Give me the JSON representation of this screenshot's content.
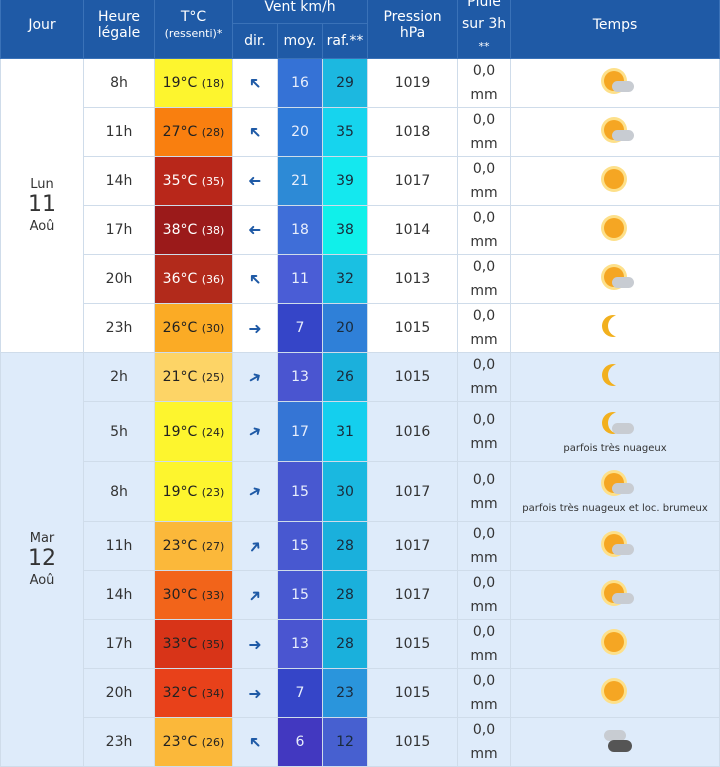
{
  "header": {
    "jour": "Jour",
    "heure": "Heure",
    "heure2": "légale",
    "temp": "T°C",
    "temp2": "(ressenti)*",
    "vent": "Vent km/h",
    "dir": "dir.",
    "moy": "moy.",
    "raf": "raf.**",
    "pression": "Pression",
    "pression2": "hPa",
    "pluie": "Pluie",
    "pluie2": "sur 3h",
    "pluie3": "**",
    "temps": "Temps"
  },
  "days": [
    {
      "name": "Lun",
      "num": "11",
      "month": "Aoû",
      "rows": [
        {
          "h": "8h",
          "t": "19°C",
          "r": "(18)",
          "tc": "#fdf52e",
          "dir": 225,
          "moy": "16",
          "mc": "#3572d6",
          "raf": "29",
          "rc": "#1cb8e0",
          "p": "1019",
          "rain": "0,0",
          "unit": "mm",
          "icon": "sun-cloud"
        },
        {
          "h": "11h",
          "t": "27°C",
          "r": "(28)",
          "tc": "#f97f0f",
          "dir": 225,
          "moy": "20",
          "mc": "#2f7ad8",
          "raf": "35",
          "rc": "#16d4ee",
          "p": "1018",
          "rain": "0,0",
          "unit": "mm",
          "icon": "sun-cloud"
        },
        {
          "h": "14h",
          "t": "35°C",
          "r": "(35)",
          "tc": "#b8271a",
          "dark": true,
          "dir": 180,
          "moy": "21",
          "mc": "#2d8ad6",
          "raf": "39",
          "rc": "#14e8ef",
          "p": "1017",
          "rain": "0,0",
          "unit": "mm",
          "icon": "sun"
        },
        {
          "h": "17h",
          "t": "38°C",
          "r": "(38)",
          "tc": "#9b1a1a",
          "dark": true,
          "dir": 180,
          "moy": "18",
          "mc": "#3f6ed8",
          "raf": "38",
          "rc": "#10f0ea",
          "p": "1014",
          "rain": "0,0",
          "unit": "mm",
          "icon": "sun"
        },
        {
          "h": "20h",
          "t": "36°C",
          "r": "(36)",
          "tc": "#b22a1b",
          "dark": true,
          "dir": 225,
          "moy": "11",
          "mc": "#4a5dd6",
          "raf": "32",
          "rc": "#1ac0e2",
          "p": "1013",
          "rain": "0,0",
          "unit": "mm",
          "icon": "sun-cloud"
        },
        {
          "h": "23h",
          "t": "26°C",
          "r": "(30)",
          "tc": "#fbab25",
          "dir": 0,
          "moy": "7",
          "mc": "#3545c8",
          "raf": "20",
          "rc": "#2f80d8",
          "p": "1015",
          "rain": "0,0",
          "unit": "mm",
          "icon": "moon"
        }
      ]
    },
    {
      "name": "Mar",
      "num": "12",
      "month": "Aoû",
      "rows": [
        {
          "h": "2h",
          "t": "21°C",
          "r": "(25)",
          "tc": "#fdd466",
          "dir": -30,
          "moy": "13",
          "mc": "#4a55d0",
          "raf": "26",
          "rc": "#1bb0dc",
          "p": "1015",
          "rain": "0,0",
          "unit": "mm",
          "icon": "moon"
        },
        {
          "h": "5h",
          "t": "19°C",
          "r": "(24)",
          "tc": "#fdf52e",
          "dir": -30,
          "moy": "17",
          "mc": "#3575d5",
          "raf": "31",
          "rc": "#14cfee",
          "p": "1016",
          "rain": "0,0",
          "unit": "mm",
          "icon": "moon-cloud",
          "caption": "parfois très nuageux"
        },
        {
          "h": "8h",
          "t": "19°C",
          "r": "(23)",
          "tc": "#fdf52e",
          "dir": -30,
          "moy": "15",
          "mc": "#4858d0",
          "raf": "30",
          "rc": "#1ab8e0",
          "p": "1017",
          "rain": "0,0",
          "unit": "mm",
          "icon": "sun-cloud",
          "caption": "parfois très nuageux et loc. brumeux"
        },
        {
          "h": "11h",
          "t": "23°C",
          "r": "(27)",
          "tc": "#fbb83a",
          "dir": -50,
          "moy": "15",
          "mc": "#4858d0",
          "raf": "28",
          "rc": "#1ab0dc",
          "p": "1017",
          "rain": "0,0",
          "unit": "mm",
          "icon": "sun-cloud"
        },
        {
          "h": "14h",
          "t": "30°C",
          "r": "(33)",
          "tc": "#f2641a",
          "dir": -45,
          "moy": "15",
          "mc": "#4858d0",
          "raf": "28",
          "rc": "#1ab0dc",
          "p": "1017",
          "rain": "0,0",
          "unit": "mm",
          "icon": "sun-cloud"
        },
        {
          "h": "17h",
          "t": "33°C",
          "r": "(35)",
          "tc": "#d83418",
          "dir": 0,
          "moy": "13",
          "mc": "#4a55d0",
          "raf": "28",
          "rc": "#1ab0dc",
          "p": "1015",
          "rain": "0,0",
          "unit": "mm",
          "icon": "sun"
        },
        {
          "h": "20h",
          "t": "32°C",
          "r": "(34)",
          "tc": "#e8411a",
          "dir": 0,
          "moy": "7",
          "mc": "#3545c8",
          "raf": "23",
          "rc": "#2a95dc",
          "p": "1015",
          "rain": "0,0",
          "unit": "mm",
          "icon": "sun"
        },
        {
          "h": "23h",
          "t": "23°C",
          "r": "(26)",
          "tc": "#fbb83a",
          "dir": 225,
          "moy": "6",
          "mc": "#4238c0",
          "raf": "12",
          "rc": "#4760d0",
          "p": "1015",
          "rain": "0,0",
          "unit": "mm",
          "icon": "storm-cloud"
        }
      ]
    }
  ]
}
